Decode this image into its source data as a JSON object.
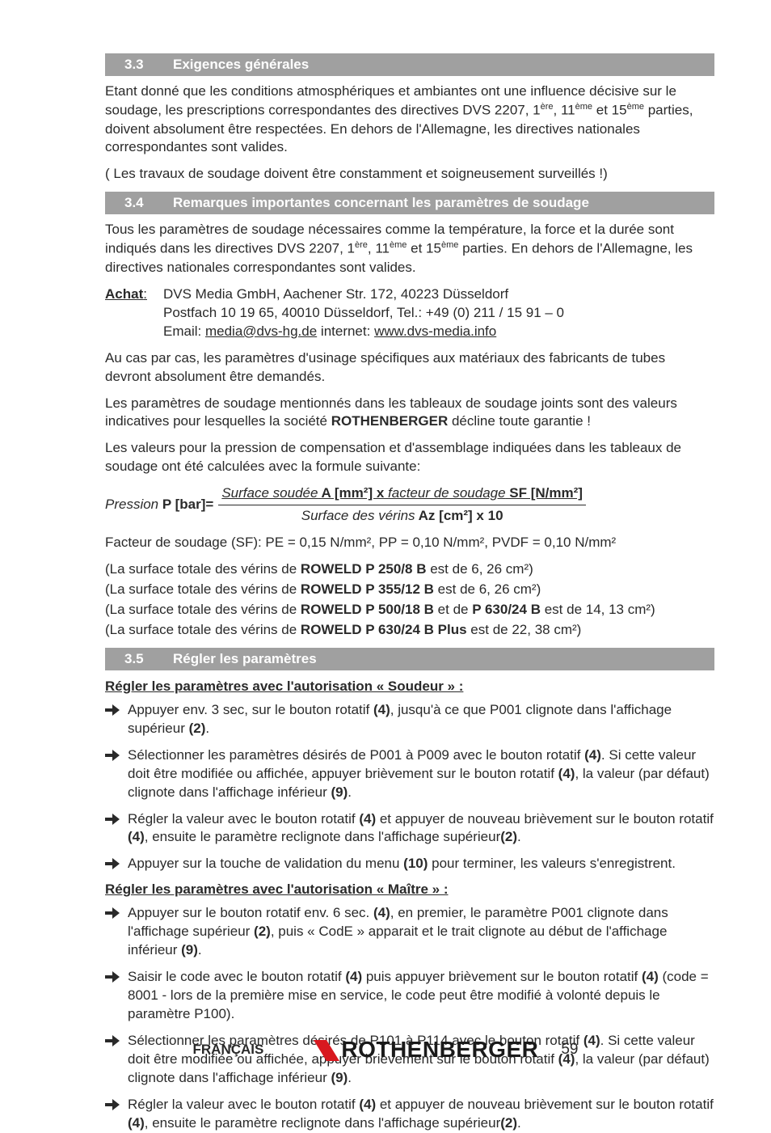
{
  "colors": {
    "section_bar_bg": "#a0a0a0",
    "section_bar_fg": "#ffffff",
    "body_text": "#2a2a2a",
    "arrow_fill": "#2a2a2a",
    "logo_fill": "#d8181f"
  },
  "sections": {
    "s33": {
      "num": "3.3",
      "title": "Exigences générales"
    },
    "s34": {
      "num": "3.4",
      "title": "Remarques importantes concernant les paramètres de soudage"
    },
    "s35": {
      "num": "3.5",
      "title": "Régler les paramètres"
    }
  },
  "p": {
    "p33_a": "Etant donné que les conditions atmosphériques et ambiantes ont une influence décisive sur le soudage, les prescriptions correspondantes des directives DVS 2207, 1",
    "p33_a_sup1": "ère",
    "p33_a_mid1": ", 11",
    "p33_a_sup2": "ème",
    "p33_a_mid2": " et 15",
    "p33_a_sup3": "ème",
    "p33_a_end": " parties, doivent absolument être respectées. En dehors de l'Allemagne, les directives nationales correspondantes sont valides.",
    "p33_b": "( Les travaux de soudage doivent être constamment et soigneusement surveillés !)",
    "p34_a": "Tous les paramètres de soudage nécessaires comme la température, la force et la durée sont indiqués dans les directives DVS 2207, 1",
    "p34_a_sup1": "ère",
    "p34_a_mid1": ", 11",
    "p34_a_sup2": "ème",
    "p34_a_mid2": " et 15",
    "p34_a_sup3": "ème",
    "p34_a_end": " parties. En dehors de l'Allemagne, les directives nationales correspondantes sont valides.",
    "achat_label": "Achat",
    "achat_colon": ":",
    "achat_l1": "DVS Media GmbH, Aachener Str. 172, 40223 Düsseldorf",
    "achat_l2": "Postfach 10 19 65, 40010 Düsseldorf, Tel.: +49 (0) 211 / 15 91 – 0",
    "achat_l3_a": "Email: ",
    "achat_l3_email": "media@dvs-hg.de",
    "achat_l3_b": "  internet: ",
    "achat_l3_url": "www.dvs-media.info",
    "p34_b": "Au cas par cas, les paramètres d'usinage spécifiques aux matériaux des fabricants de tubes devront absolument être demandés.",
    "p34_c_a": "Les paramètres de soudage mentionnés dans les tableaux de soudage joints sont des valeurs indicatives pour lesquelles la société ",
    "p34_c_bold": "ROTHENBERGER",
    "p34_c_b": " décline toute garantie !",
    "p34_d": "Les valeurs pour la pression de compensation et d'assemblage indiquées dans les tableaux de soudage ont été calculées avec la formule suivante:",
    "formula": {
      "left_i": "Pression ",
      "left_b": "P [bar]=",
      "num_a": "Surface soudée",
      "num_b": " A [mm²] x ",
      "num_c": "facteur de soudage",
      "num_d": " SF [N/mm²]",
      "den_a": "Surface des vérins",
      "den_b": " Az [cm²] x 10"
    },
    "sf": "Facteur de soudage (SF): PE = 0,15 N/mm², PP = 0,10 N/mm², PVDF = 0,10 N/mm²",
    "verin1_a": "(La surface totale des vérins de ",
    "verin1_b": "ROWELD P 250/8 B",
    "verin1_c": " est de 6, 26 cm²)",
    "verin2_a": "(La surface totale des vérins de ",
    "verin2_b": "ROWELD P 355/12 B",
    "verin2_c": " est de 6, 26 cm²)",
    "verin3_a": "(La surface totale des vérins de ",
    "verin3_b": "ROWELD P 500/18 B",
    "verin3_c": " et de ",
    "verin3_d": "P 630/24 B",
    "verin3_e": " est de 14, 13 cm²)",
    "verin4_a": "(La surface totale des vérins de ",
    "verin4_b": "ROWELD P 630/24 B Plus",
    "verin4_c": " est de 22, 38 cm²)",
    "sub_soudeur": "Régler les paramètres avec l'autorisation « Soudeur » :",
    "sub_maitre": "Régler les paramètres avec l'autorisation « Maître » :"
  },
  "bullets_soudeur": [
    {
      "pre": "Appuyer env. 3 sec, sur le bouton rotatif ",
      "b1": "(4)",
      "mid1": ", jusqu'à ce que P001 clignote dans l'affichage supérieur ",
      "b2": "(2)",
      "post": "."
    },
    {
      "pre": "Sélectionner les paramètres désirés de P001 à P009 avec le bouton rotatif ",
      "b1": "(4)",
      "mid1": ". Si cette valeur doit être modifiée ou affichée, appuyer brièvement sur le bouton rotatif ",
      "b2": "(4)",
      "mid2": ", la valeur (par défaut) clignote dans l'affichage inférieur ",
      "b3": "(9)",
      "post": "."
    },
    {
      "pre": "Régler la valeur avec le bouton rotatif ",
      "b1": "(4)",
      "mid1": " et appuyer de nouveau brièvement sur le bouton rotatif ",
      "b2": "(4)",
      "mid2": ", ensuite le paramètre reclignote dans l'affichage supérieur",
      "b3": "(2)",
      "post": "."
    },
    {
      "pre": "Appuyer sur la touche de validation du menu ",
      "b1": "(10)",
      "mid1": " pour terminer, les valeurs s'enregistrent.",
      "post": ""
    }
  ],
  "bullets_maitre": [
    {
      "pre": "Appuyer sur le bouton rotatif env. 6 sec. ",
      "b1": "(4)",
      "mid1": ", en premier, le paramètre P001 clignote dans l'affichage supérieur ",
      "b2": "(2)",
      "mid2": ", puis « CodE » apparait et le trait clignote au début de l'affichage inférieur ",
      "b3": "(9)",
      "post": "."
    },
    {
      "pre": "Saisir le code avec le bouton rotatif ",
      "b1": "(4)",
      "mid1": " puis appuyer brièvement sur le bouton rotatif ",
      "b2": "(4)",
      "mid2": " (code = 8001 - lors de la première mise en service, le code peut être modifié à volonté depuis le paramètre P100).",
      "post": ""
    },
    {
      "pre": "Sélectionner les paramètres désirés de P101 à P114 avec le bouton rotatif ",
      "b1": "(4)",
      "mid1": ". Si cette valeur doit être modifiée ou affichée, appuyer brièvement sur le bouton rotatif ",
      "b2": "(4)",
      "mid2": ", la valeur (par défaut) clignote dans l'affichage inférieur ",
      "b3": "(9)",
      "post": "."
    },
    {
      "pre": "Régler la valeur avec le bouton rotatif ",
      "b1": "(4)",
      "mid1": " et appuyer de nouveau brièvement sur le bouton rotatif ",
      "b2": "(4)",
      "mid2": ", ensuite le paramètre reclignote dans l'affichage supérieur",
      "b3": "(2)",
      "post": "."
    }
  ],
  "footer": {
    "lang": "FRANÇAIS",
    "brand": "ROTHENBERGER",
    "page": "59"
  }
}
